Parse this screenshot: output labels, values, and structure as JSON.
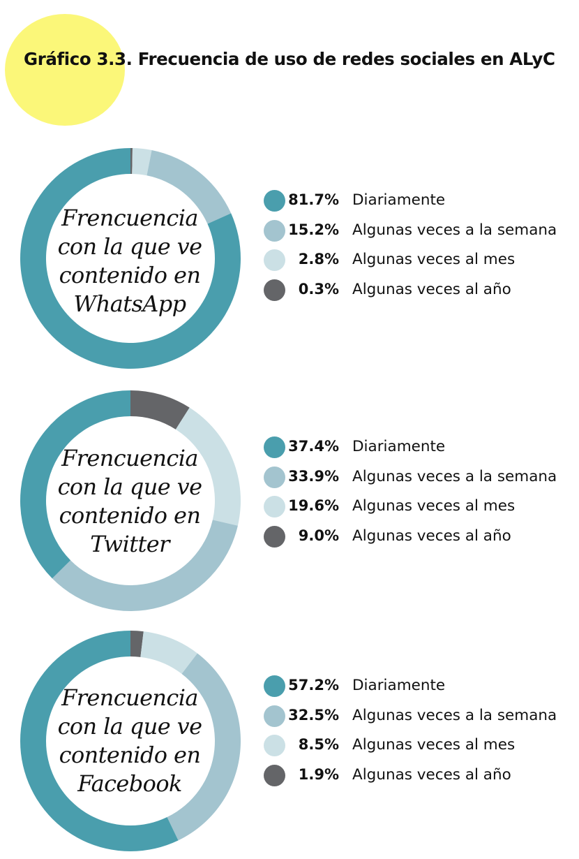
{
  "title": "Gráfico 3.3. Frecuencia de uso de redes sociales en ALyC",
  "colors": {
    "title_circle": "#fbf779",
    "series": [
      "#4a9ead",
      "#a3c4cf",
      "#cbe0e5",
      "#646568"
    ]
  },
  "chart_data": [
    {
      "type": "pie",
      "donut": true,
      "center_label_lines": [
        "Frencuencia",
        "con la que ve",
        "contenido en",
        "WhatsApp"
      ],
      "categories": [
        "Diariamente",
        "Algunas veces a la semana",
        "Algunas veces al mes",
        "Algunas veces al año"
      ],
      "values": [
        81.7,
        15.2,
        2.8,
        0.3
      ],
      "labels": [
        "81.7%",
        "15.2%",
        "2.8%",
        "0.3%"
      ]
    },
    {
      "type": "pie",
      "donut": true,
      "center_label_lines": [
        "Frencuencia",
        "con la que ve",
        "contenido en",
        "Twitter"
      ],
      "categories": [
        "Diariamente",
        "Algunas veces a la semana",
        "Algunas veces al mes",
        "Algunas veces al año"
      ],
      "values": [
        37.4,
        33.9,
        19.6,
        9.0
      ],
      "labels": [
        "37.4%",
        "33.9%",
        "19.6%",
        "9.0%"
      ]
    },
    {
      "type": "pie",
      "donut": true,
      "center_label_lines": [
        "Frencuencia",
        "con la que ve",
        "contenido en",
        "Facebook"
      ],
      "categories": [
        "Diariamente",
        "Algunas veces a la semana",
        "Algunas veces al mes",
        "Algunas veces al año"
      ],
      "values": [
        57.2,
        32.5,
        8.5,
        1.9
      ],
      "labels": [
        "57.2%",
        "32.5%",
        "8.5%",
        "1.9%"
      ]
    }
  ]
}
